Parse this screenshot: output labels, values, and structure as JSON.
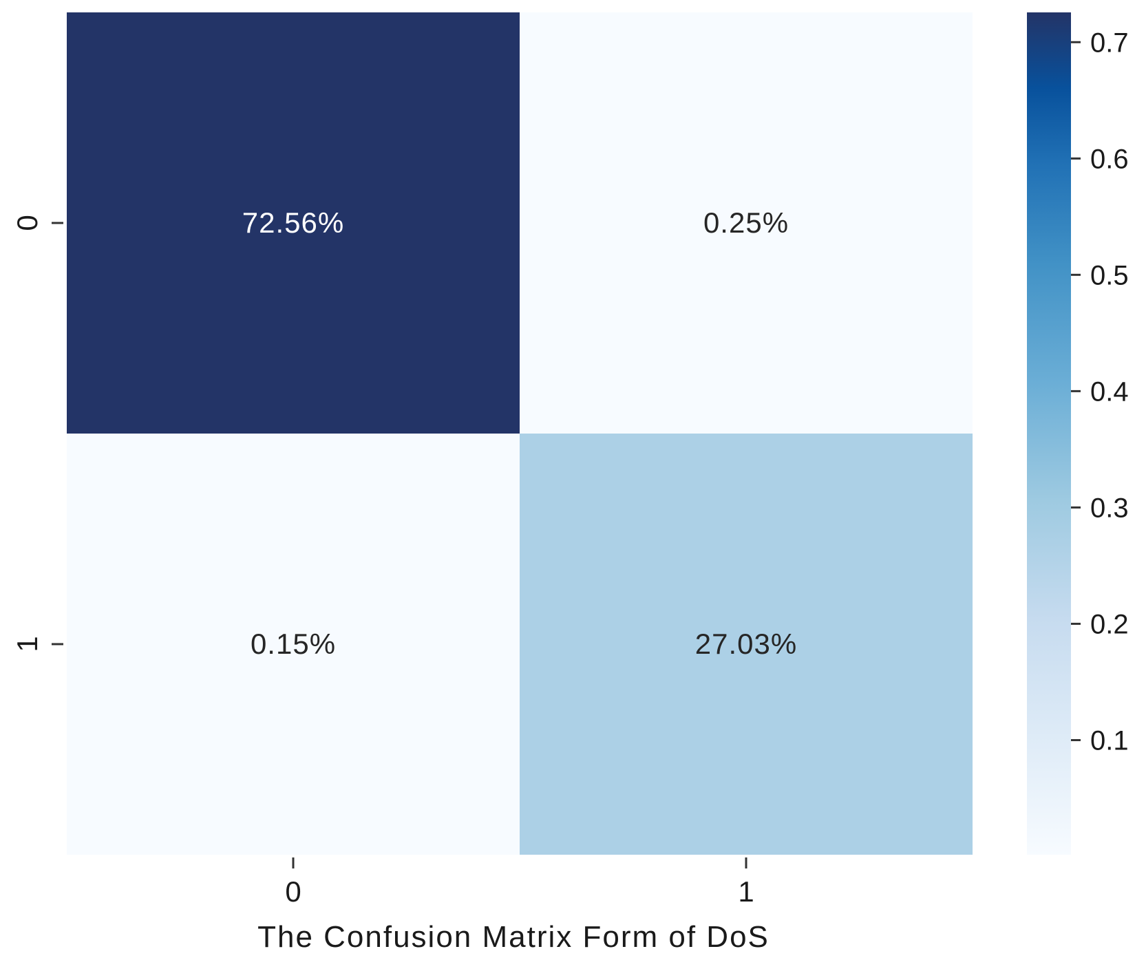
{
  "chart_data": {
    "type": "heatmap",
    "title": "",
    "xlabel": "The Confusion Matrix Form of DoS",
    "ylabel": "",
    "x_categories": [
      "0",
      "1"
    ],
    "y_categories": [
      "0",
      "1"
    ],
    "values": [
      [
        0.7256,
        0.0025
      ],
      [
        0.0015,
        0.2703
      ]
    ],
    "cell_labels": [
      [
        "72.56%",
        "0.25%"
      ],
      [
        "0.15%",
        "27.03%"
      ]
    ],
    "colormap": "Blues",
    "colorbar": {
      "range": [
        0.0015,
        0.7256
      ],
      "ticks": [
        0.1,
        0.2,
        0.3,
        0.4,
        0.5,
        0.6,
        0.7
      ],
      "tick_labels": [
        "0.1",
        "0.2",
        "0.3",
        "0.4",
        "0.5",
        "0.6",
        "0.7"
      ]
    },
    "grid": false
  }
}
